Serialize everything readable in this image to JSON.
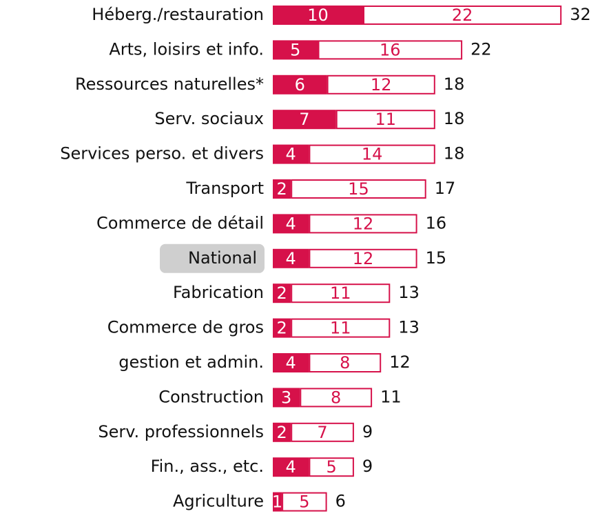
{
  "chart_data": {
    "type": "stacked-bar",
    "orientation": "horizontal",
    "categories": [
      "Héberg./restauration",
      "Arts, loisirs et info.",
      "Ressources naturelles*",
      "Serv. sociaux",
      "Services perso. et divers",
      "Transport",
      "Commerce de détail",
      "National",
      "Fabrication",
      "Commerce de gros",
      "gestion et admin.",
      "Construction",
      "Serv. professionnels",
      "Fin., ass., etc.",
      "Agriculture"
    ],
    "series": [
      {
        "color": "#d6114a",
        "style": "filled",
        "values": [
          10,
          5,
          6,
          7,
          4,
          2,
          4,
          4,
          2,
          2,
          4,
          3,
          2,
          4,
          1
        ]
      },
      {
        "color": "#d6114a",
        "style": "outlined",
        "values": [
          22,
          16,
          12,
          11,
          14,
          15,
          12,
          12,
          11,
          11,
          8,
          8,
          7,
          5,
          5
        ]
      }
    ],
    "totals": [
      32,
      22,
      18,
      18,
      18,
      17,
      16,
      15,
      13,
      13,
      12,
      11,
      9,
      9,
      6
    ],
    "highlight_index": 7
  }
}
